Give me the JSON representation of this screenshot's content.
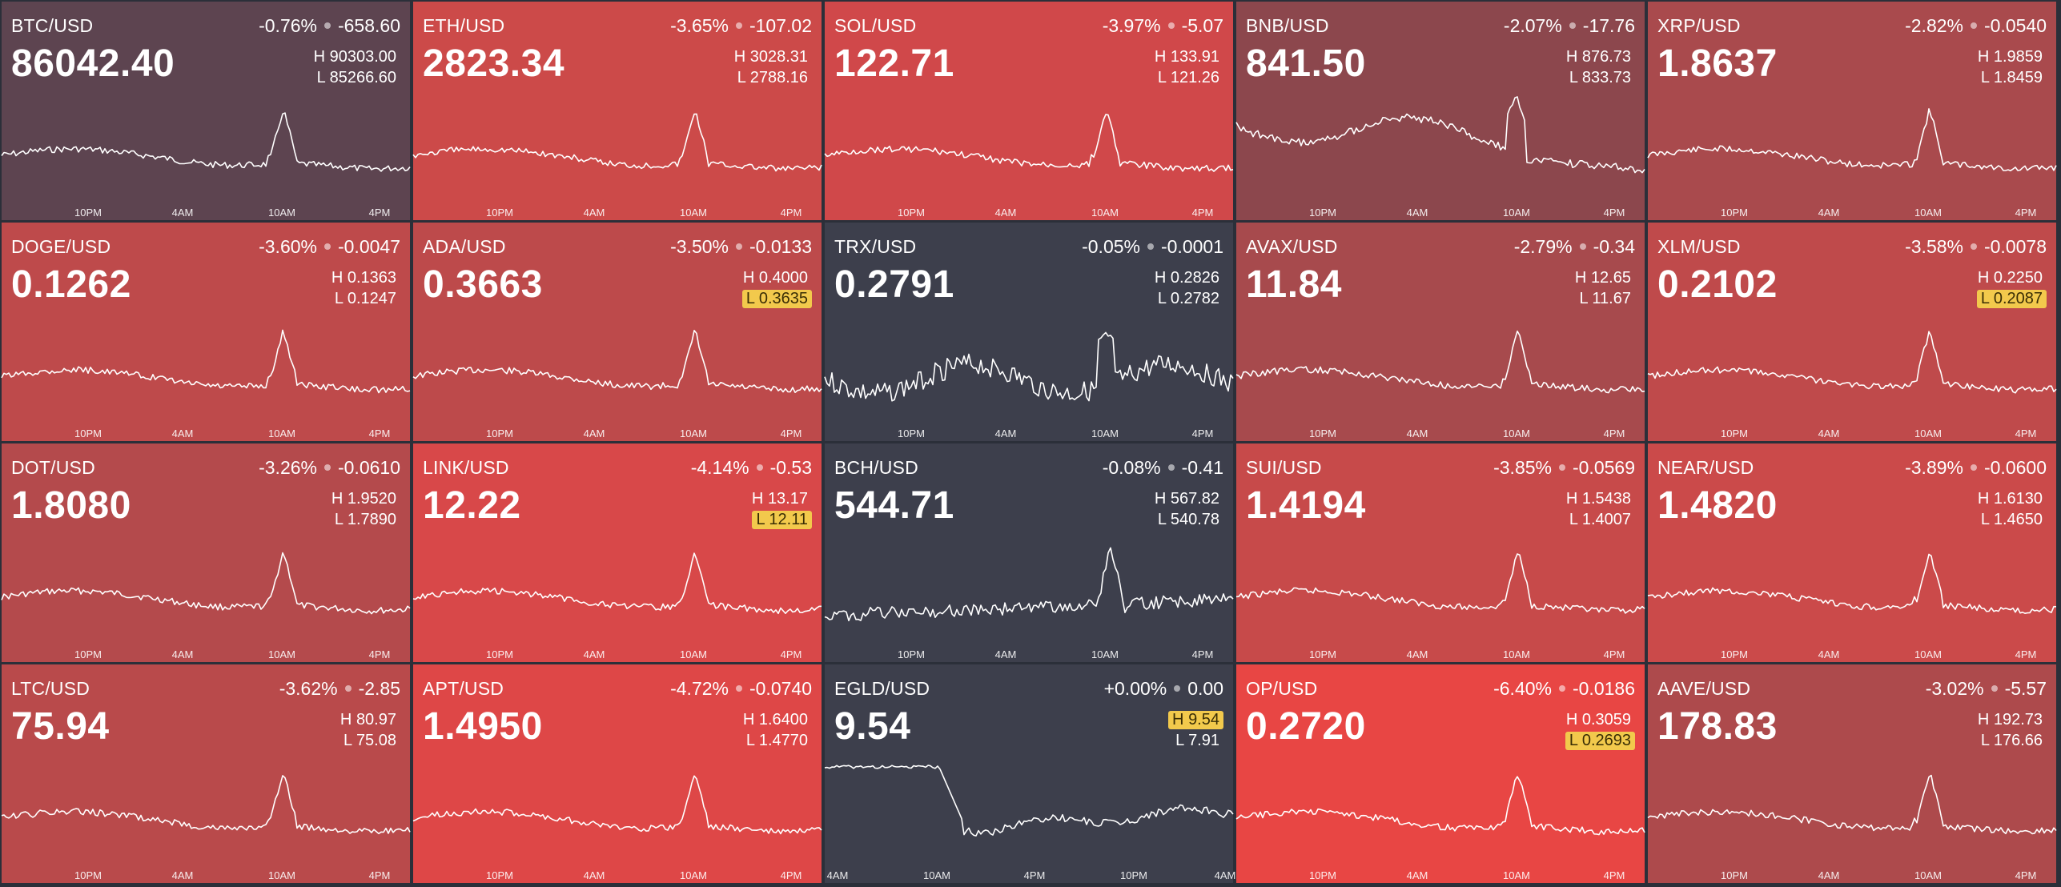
{
  "tiles": [
    {
      "symbol": "BTC/USD",
      "pct": "-0.76%",
      "change": "-658.60",
      "price": "86042.40",
      "high_label": "H",
      "high": "90303.00",
      "low_label": "L",
      "low": "85266.60",
      "hit": "",
      "bg": "#5d4450",
      "pattern": "spike",
      "ticks": [
        "10PM",
        "4AM",
        "10AM",
        "4PM"
      ]
    },
    {
      "symbol": "ETH/USD",
      "pct": "-3.65%",
      "change": "-107.02",
      "price": "2823.34",
      "high_label": "H",
      "high": "3028.31",
      "low_label": "L",
      "low": "2788.16",
      "hit": "",
      "bg": "#cc4a49",
      "pattern": "spike",
      "ticks": [
        "10PM",
        "4AM",
        "10AM",
        "4PM"
      ]
    },
    {
      "symbol": "SOL/USD",
      "pct": "-3.97%",
      "change": "-5.07",
      "price": "122.71",
      "high_label": "H",
      "high": "133.91",
      "low_label": "L",
      "low": "121.26",
      "hit": "",
      "bg": "#d0484a",
      "pattern": "spike",
      "ticks": [
        "10PM",
        "4AM",
        "10AM",
        "4PM"
      ]
    },
    {
      "symbol": "BNB/USD",
      "pct": "-2.07%",
      "change": "-17.76",
      "price": "841.50",
      "high_label": "H",
      "high": "876.73",
      "low_label": "L",
      "low": "833.73",
      "hit": "",
      "bg": "#8c474d",
      "pattern": "wave",
      "ticks": [
        "10PM",
        "4AM",
        "10AM",
        "4PM"
      ]
    },
    {
      "symbol": "XRP/USD",
      "pct": "-2.82%",
      "change": "-0.0540",
      "price": "1.8637",
      "high_label": "H",
      "high": "1.9859",
      "low_label": "L",
      "low": "1.8459",
      "hit": "",
      "bg": "#a94a4d",
      "pattern": "spike",
      "ticks": [
        "10PM",
        "4AM",
        "10AM",
        "4PM"
      ]
    },
    {
      "symbol": "DOGE/USD",
      "pct": "-3.60%",
      "change": "-0.0047",
      "price": "0.1262",
      "high_label": "H",
      "high": "0.1363",
      "low_label": "L",
      "low": "0.1247",
      "hit": "",
      "bg": "#be4a4b",
      "pattern": "spike",
      "ticks": [
        "10PM",
        "4AM",
        "10AM",
        "4PM"
      ]
    },
    {
      "symbol": "ADA/USD",
      "pct": "-3.50%",
      "change": "-0.0133",
      "price": "0.3663",
      "high_label": "H",
      "high": "0.4000",
      "low_label": "L",
      "low": "0.3635",
      "hit": "low",
      "bg": "#bd4a4b",
      "pattern": "spike",
      "ticks": [
        "10PM",
        "4AM",
        "10AM",
        "4PM"
      ]
    },
    {
      "symbol": "TRX/USD",
      "pct": "-0.05%",
      "change": "-0.0001",
      "price": "0.2791",
      "high_label": "H",
      "high": "0.2826",
      "low_label": "L",
      "low": "0.2782",
      "hit": "",
      "bg": "#3d3f4c",
      "pattern": "noisy",
      "ticks": [
        "10PM",
        "4AM",
        "10AM",
        "4PM"
      ]
    },
    {
      "symbol": "AVAX/USD",
      "pct": "-2.79%",
      "change": "-0.34",
      "price": "11.84",
      "high_label": "H",
      "high": "12.65",
      "low_label": "L",
      "low": "11.67",
      "hit": "",
      "bg": "#a74a4d",
      "pattern": "spike",
      "ticks": [
        "10PM",
        "4AM",
        "10AM",
        "4PM"
      ]
    },
    {
      "symbol": "XLM/USD",
      "pct": "-3.58%",
      "change": "-0.0078",
      "price": "0.2102",
      "high_label": "H",
      "high": "0.2250",
      "low_label": "L",
      "low": "0.2087",
      "hit": "low",
      "bg": "#bf4a4b",
      "pattern": "spike",
      "ticks": [
        "10PM",
        "4AM",
        "10AM",
        "4PM"
      ]
    },
    {
      "symbol": "DOT/USD",
      "pct": "-3.26%",
      "change": "-0.0610",
      "price": "1.8080",
      "high_label": "H",
      "high": "1.9520",
      "low_label": "L",
      "low": "1.7890",
      "hit": "",
      "bg": "#b44a4c",
      "pattern": "spike",
      "ticks": [
        "10PM",
        "4AM",
        "10AM",
        "4PM"
      ]
    },
    {
      "symbol": "LINK/USD",
      "pct": "-4.14%",
      "change": "-0.53",
      "price": "12.22",
      "high_label": "H",
      "high": "13.17",
      "low_label": "L",
      "low": "12.11",
      "hit": "low",
      "bg": "#d84849",
      "pattern": "spike",
      "ticks": [
        "10PM",
        "4AM",
        "10AM",
        "4PM"
      ]
    },
    {
      "symbol": "BCH/USD",
      "pct": "-0.08%",
      "change": "-0.41",
      "price": "544.71",
      "high_label": "H",
      "high": "567.82",
      "low_label": "L",
      "low": "540.78",
      "hit": "",
      "bg": "#3d3f4c",
      "pattern": "bigspike",
      "ticks": [
        "10PM",
        "4AM",
        "10AM",
        "4PM"
      ]
    },
    {
      "symbol": "SUI/USD",
      "pct": "-3.85%",
      "change": "-0.0569",
      "price": "1.4194",
      "high_label": "H",
      "high": "1.5438",
      "low_label": "L",
      "low": "1.4007",
      "hit": "",
      "bg": "#c74a4a",
      "pattern": "spike",
      "ticks": [
        "10PM",
        "4AM",
        "10AM",
        "4PM"
      ]
    },
    {
      "symbol": "NEAR/USD",
      "pct": "-3.89%",
      "change": "-0.0600",
      "price": "1.4820",
      "high_label": "H",
      "high": "1.6130",
      "low_label": "L",
      "low": "1.4650",
      "hit": "",
      "bg": "#cb4a4a",
      "pattern": "spike",
      "ticks": [
        "10PM",
        "4AM",
        "10AM",
        "4PM"
      ]
    },
    {
      "symbol": "LTC/USD",
      "pct": "-3.62%",
      "change": "-2.85",
      "price": "75.94",
      "high_label": "H",
      "high": "80.97",
      "low_label": "L",
      "low": "75.08",
      "hit": "",
      "bg": "#b94a4b",
      "pattern": "spike",
      "ticks": [
        "10PM",
        "4AM",
        "10AM",
        "4PM"
      ]
    },
    {
      "symbol": "APT/USD",
      "pct": "-4.72%",
      "change": "-0.0740",
      "price": "1.4950",
      "high_label": "H",
      "high": "1.6400",
      "low_label": "L",
      "low": "1.4770",
      "hit": "",
      "bg": "#de4747",
      "pattern": "spike",
      "ticks": [
        "10PM",
        "4AM",
        "10AM",
        "4PM"
      ]
    },
    {
      "symbol": "EGLD/USD",
      "pct": "+0.00%",
      "change": "0.00",
      "price": "9.54",
      "high_label": "H",
      "high": "9.54",
      "low_label": "L",
      "low": "7.91",
      "hit": "high",
      "bg": "#3d3f4c",
      "pattern": "dropback",
      "ticks": [
        "4AM",
        "10AM",
        "4PM",
        "10PM",
        "4AM"
      ]
    },
    {
      "symbol": "OP/USD",
      "pct": "-6.40%",
      "change": "-0.0186",
      "price": "0.2720",
      "high_label": "H",
      "high": "0.3059",
      "low_label": "L",
      "low": "0.2693",
      "hit": "low",
      "bg": "#e84644",
      "pattern": "spike",
      "ticks": [
        "10PM",
        "4AM",
        "10AM",
        "4PM"
      ]
    },
    {
      "symbol": "AAVE/USD",
      "pct": "-3.02%",
      "change": "-5.57",
      "price": "178.83",
      "high_label": "H",
      "high": "192.73",
      "low_label": "L",
      "low": "176.66",
      "hit": "",
      "bg": "#ad4a4c",
      "pattern": "spike",
      "ticks": [
        "10PM",
        "4AM",
        "10AM",
        "4PM"
      ]
    }
  ]
}
